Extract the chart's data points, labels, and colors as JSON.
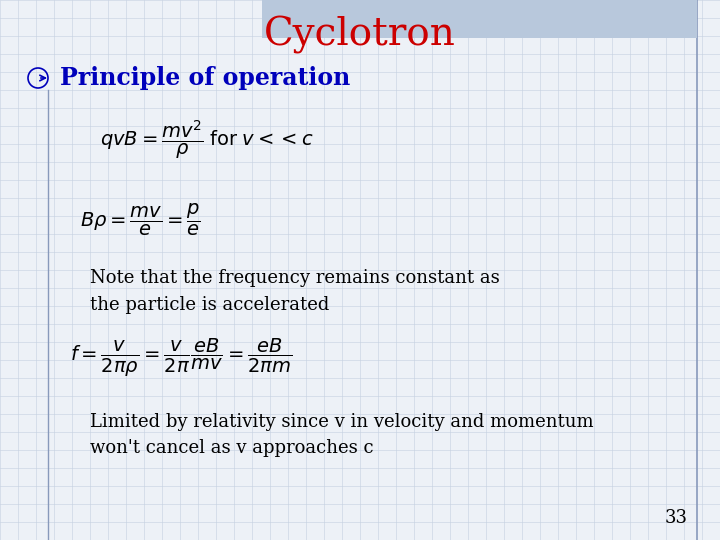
{
  "title": "Cyclotron",
  "title_color": "#CC0000",
  "title_fontsize": 28,
  "bullet_text": "Principle of operation",
  "bullet_color": "#0000BB",
  "bullet_fontsize": 17,
  "eq1": "$qvB = \\dfrac{mv^2}{\\rho}\\;\\mathrm{for}\\; v << c$",
  "eq2": "$B\\rho = \\dfrac{mv}{e} = \\dfrac{p}{e}$",
  "note1": "Note that the frequency remains constant as",
  "note2": "the particle is accelerated",
  "eq3": "$f = \\dfrac{v}{2\\pi\\rho} = \\dfrac{v}{2\\pi}\\dfrac{eB}{mv} = \\dfrac{eB}{2\\pi m}$",
  "note3": "Limited by relativity since v in velocity and momentum",
  "note4": "won't cancel as v approaches c",
  "page_number": "33",
  "bg_color": "#EDF1F7",
  "grid_color": "#C5D0E0",
  "header_color": "#B8C8DC",
  "vline_color": "#8899BB",
  "text_color": "#000000",
  "eq_fontsize": 14,
  "note_fontsize": 13
}
